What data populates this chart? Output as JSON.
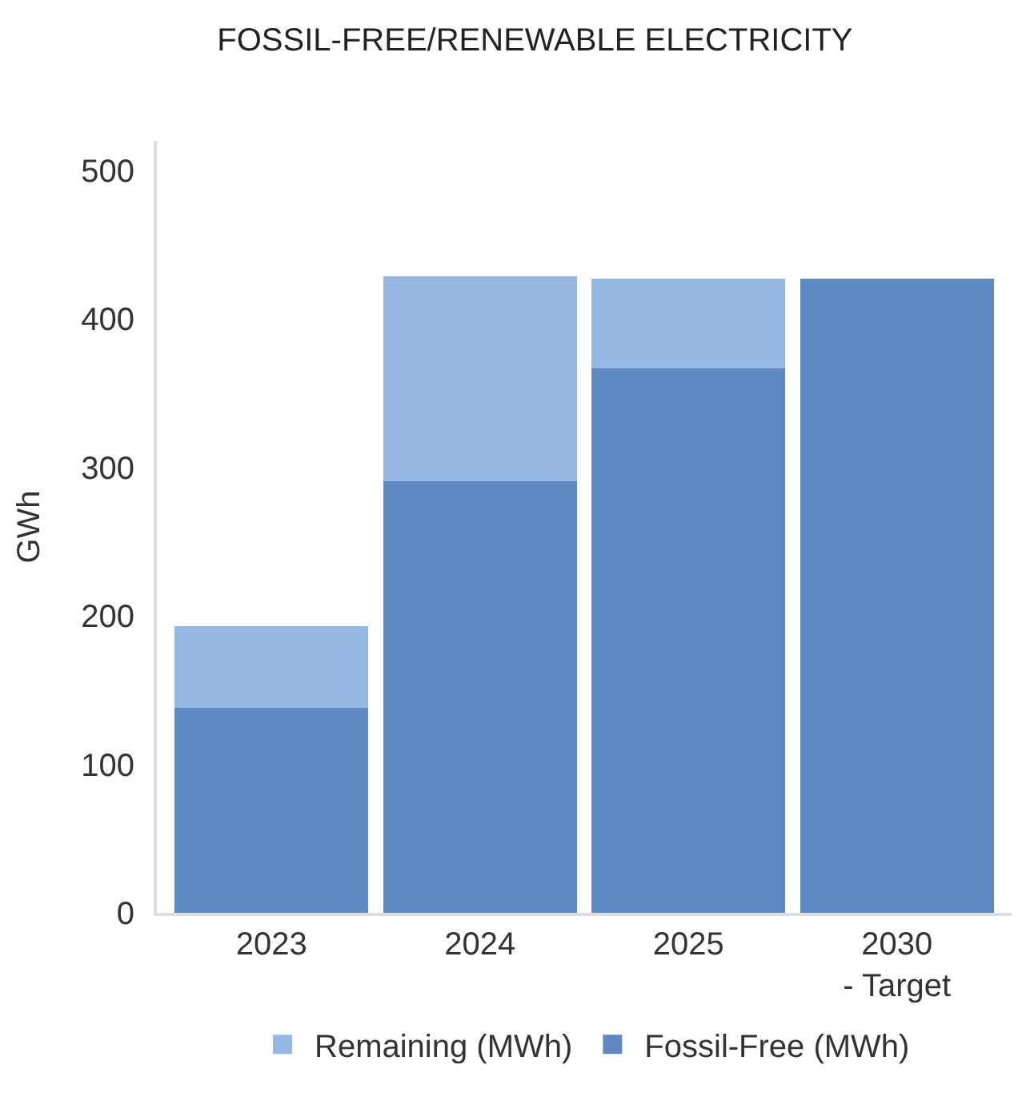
{
  "chart_data": {
    "type": "bar",
    "title": "FOSSIL-FREE/RENEWABLE ELECTRICITY",
    "ylabel": "GWh",
    "categories": [
      "2023",
      "2024",
      "2025",
      "2030\n- Target"
    ],
    "stacked": true,
    "series": [
      {
        "name": "Fossil-Free (MWh)",
        "color": "#5e89c5",
        "values": [
          138,
          291,
          367,
          427
        ]
      },
      {
        "name": "Remaining (MWh)",
        "color": "#96b9e3",
        "values": [
          55,
          138,
          60,
          0
        ]
      }
    ],
    "ylim": [
      0,
      520
    ],
    "yticks": [
      0,
      100,
      200,
      300,
      400,
      500
    ],
    "grid": false,
    "legend": "bottom"
  }
}
